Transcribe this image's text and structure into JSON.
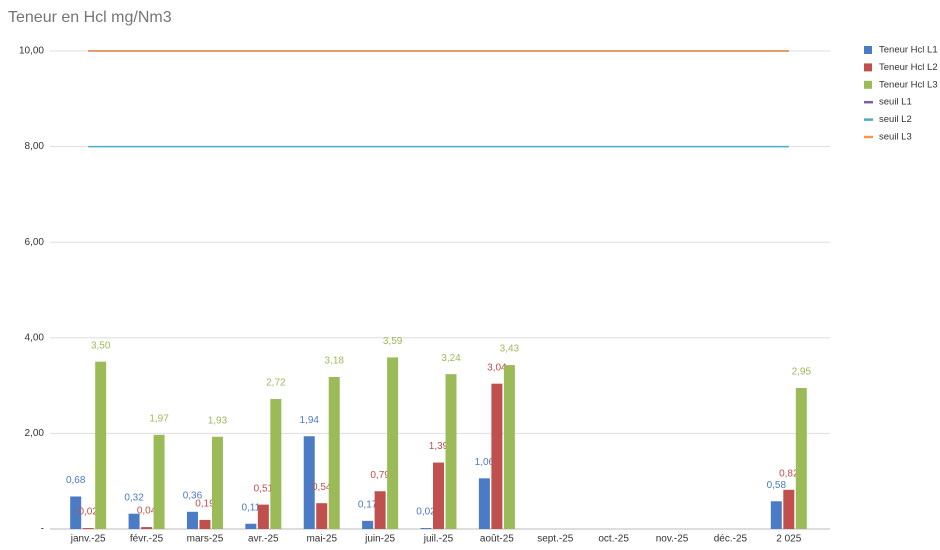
{
  "chart_data": {
    "type": "bar",
    "title": "Teneur en Hcl mg/Nm3",
    "categories": [
      "janv.-25",
      "févr.-25",
      "mars-25",
      "avr.-25",
      "mai-25",
      "juin-25",
      "juil.-25",
      "août-25",
      "sept.-25",
      "oct.-25",
      "nov.-25",
      "déc.-25",
      "2 025"
    ],
    "series": [
      {
        "name": "Teneur Hcl L1",
        "type": "bar",
        "color": "#4a7bc4",
        "values": [
          0.68,
          0.32,
          0.36,
          0.11,
          1.94,
          0.17,
          0.02,
          1.06,
          null,
          null,
          null,
          null,
          0.58
        ],
        "value_labels": [
          "0,68",
          "0,32",
          "0,36",
          "0,11",
          "1,94",
          "0,17",
          "0,02",
          "1,06",
          null,
          null,
          null,
          null,
          "0,58"
        ]
      },
      {
        "name": "Teneur Hcl L2",
        "type": "bar",
        "color": "#c0504d",
        "values": [
          0.02,
          0.04,
          0.19,
          0.51,
          0.54,
          0.79,
          1.39,
          3.04,
          null,
          null,
          null,
          null,
          0.82
        ],
        "value_labels": [
          "0,02",
          "0,04",
          "0,19",
          "0,51",
          "0,54",
          "0,79",
          "1,39",
          "3,04",
          null,
          null,
          null,
          null,
          "0,82"
        ]
      },
      {
        "name": "Teneur Hcl L3",
        "type": "bar",
        "color": "#9bbb59",
        "values": [
          3.5,
          1.97,
          1.93,
          2.72,
          3.18,
          3.59,
          3.24,
          3.43,
          null,
          null,
          null,
          null,
          2.95
        ],
        "value_labels": [
          "3,50",
          "1,97",
          "1,93",
          "2,72",
          "3,18",
          "3,59",
          "3,24",
          "3,43",
          null,
          null,
          null,
          null,
          "2,95"
        ]
      },
      {
        "name": "seuil L1",
        "type": "line",
        "color": "#7e5ea8",
        "values": [
          10,
          10,
          10,
          10,
          10,
          10,
          10,
          10,
          10,
          10,
          10,
          10,
          10
        ]
      },
      {
        "name": "seuil L2",
        "type": "line",
        "color": "#4bacc6",
        "values": [
          8,
          8,
          8,
          8,
          8,
          8,
          8,
          8,
          8,
          8,
          8,
          8,
          8
        ]
      },
      {
        "name": "seuil L3",
        "type": "line",
        "color": "#f79646",
        "values": [
          10,
          10,
          10,
          10,
          10,
          10,
          10,
          10,
          10,
          10,
          10,
          10,
          10
        ]
      }
    ],
    "ylim": [
      0,
      10
    ],
    "yticks": [
      {
        "value": 0,
        "label": "-"
      },
      {
        "value": 2,
        "label": "2,00"
      },
      {
        "value": 4,
        "label": "4,00"
      },
      {
        "value": 6,
        "label": "6,00"
      },
      {
        "value": 8,
        "label": "8,00"
      },
      {
        "value": 10,
        "label": "10,00"
      }
    ],
    "grid": true,
    "legend": "right"
  }
}
